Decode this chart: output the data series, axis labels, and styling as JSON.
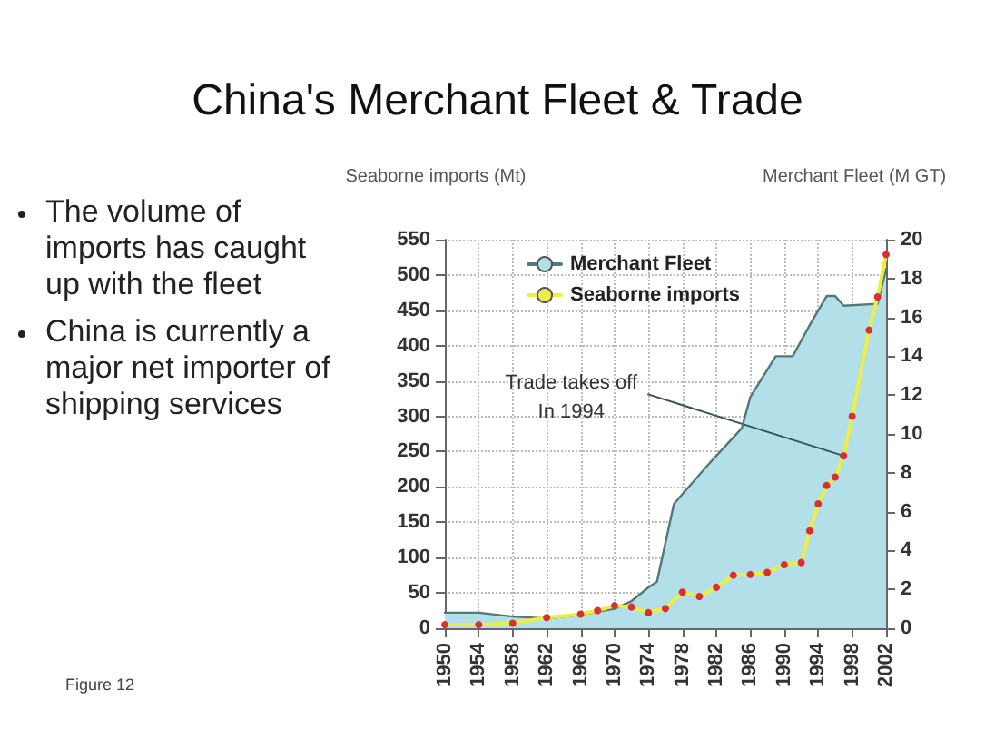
{
  "chart_data": {
    "type": "line",
    "title": "China's Merchant Fleet & Trade",
    "ylabel": "Seaborne imports (Mt)",
    "y2label": "Merchant Fleet (M GT)",
    "annotations": [
      "The volume of imports has caught up with the fleet",
      "China is currently a major net importer of shipping services",
      {
        "text": "Trade takes off\nIn 1994",
        "x": 1997,
        "y": 244
      },
      "Figure 12"
    ],
    "xlim": [
      1950,
      2002
    ],
    "xticks": [
      1950,
      1954,
      1958,
      1962,
      1966,
      1970,
      1974,
      1978,
      1982,
      1986,
      1990,
      1994,
      1998,
      2002
    ],
    "ylim": [
      0,
      550
    ],
    "yticks": [
      0,
      50,
      100,
      150,
      200,
      250,
      300,
      350,
      400,
      450,
      500,
      550
    ],
    "y2lim": [
      0,
      20
    ],
    "y2ticks": [
      0,
      2,
      4,
      6,
      8,
      10,
      12,
      14,
      16,
      18,
      20
    ],
    "grid": true,
    "legend": "top left",
    "series": [
      {
        "name": "Merchant Fleet",
        "type": "area",
        "axis": "y2",
        "color": "#b3dfe8",
        "x": [
          1950,
          1954,
          1958,
          1962,
          1966,
          1970,
          1972,
          1974,
          1975,
          1977,
          1981,
          1985,
          1986,
          1989,
          1991,
          1993,
          1995,
          1996,
          1997,
          2001,
          2002
        ],
        "values": [
          0.8,
          0.8,
          0.6,
          0.5,
          0.7,
          1.0,
          1.4,
          2.1,
          2.4,
          6.4,
          8.4,
          10.3,
          11.9,
          14.0,
          14.0,
          15.6,
          17.1,
          17.1,
          16.6,
          16.7,
          18.5
        ]
      },
      {
        "name": "Seaborne imports",
        "color": "#eeee40",
        "marker": "circle",
        "x": [
          1950,
          1954,
          1958,
          1962,
          1966,
          1968,
          1970,
          1972,
          1974,
          1976,
          1978,
          1980,
          1982,
          1984,
          1986,
          1988,
          1990,
          1992,
          1993,
          1994,
          1995,
          1996,
          1997,
          1998,
          2000,
          2001,
          2002
        ],
        "values": [
          5,
          5,
          7,
          15,
          20,
          25,
          32,
          30,
          22,
          28,
          51,
          45,
          58,
          75,
          76,
          79,
          90,
          93,
          138,
          176,
          202,
          214,
          244,
          300,
          422,
          469,
          529
        ]
      }
    ]
  }
}
